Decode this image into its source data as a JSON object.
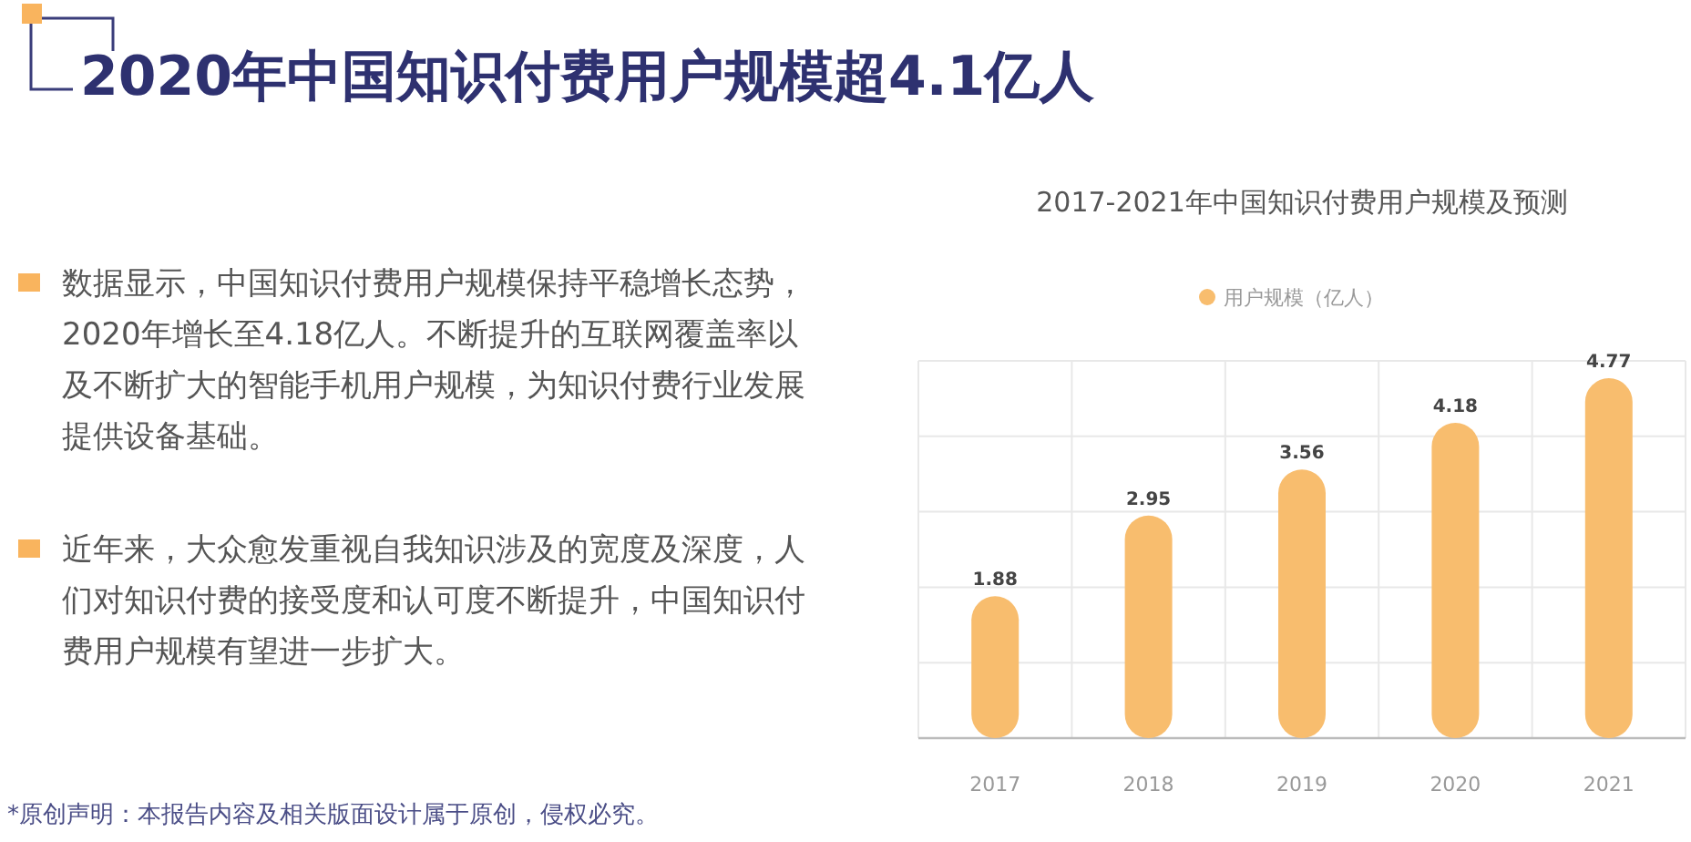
{
  "chart_data": {
    "type": "bar",
    "title": "2020年中国知识付费用户规模超4.1亿人",
    "subtitle": "2017-2021年中国知识付费用户规模及预测",
    "annotations": [
      "数据显示，中国知识付费用户规模保持平稳增长态势，2020年增长至4.18亿人。不断提升的互联网覆盖率以及不断扩大的智能手机用户规模，为知识付费行业发展提供设备基础。",
      "近年来，大众愈发重视自我知识涉及的宽度及深度，人们对知识付费的接受度和认可度不断提升，中国知识付费用户规模有望进一步扩大。",
      "*原创声明：本报告内容及相关版面设计属于原创，侵权必究。"
    ],
    "categories": [
      "2017",
      "2018",
      "2019",
      "2020",
      "2021"
    ],
    "series": [
      {
        "name": "用户规模（亿人）",
        "color": "#f8bd6e",
        "values": [
          1.88,
          2.95,
          3.56,
          4.18,
          4.77
        ]
      }
    ],
    "ylim": [
      0,
      5
    ],
    "yticks": [
      {
        "value": 0,
        "label": null
      },
      {
        "value": 1,
        "label": null
      },
      {
        "value": 2,
        "label": null
      },
      {
        "value": 3,
        "label": null
      },
      {
        "value": 4,
        "label": null
      },
      {
        "value": 5,
        "label": null
      }
    ],
    "tick_labels": "x",
    "grid": true,
    "legend": "top",
    "data_labels": true
  }
}
